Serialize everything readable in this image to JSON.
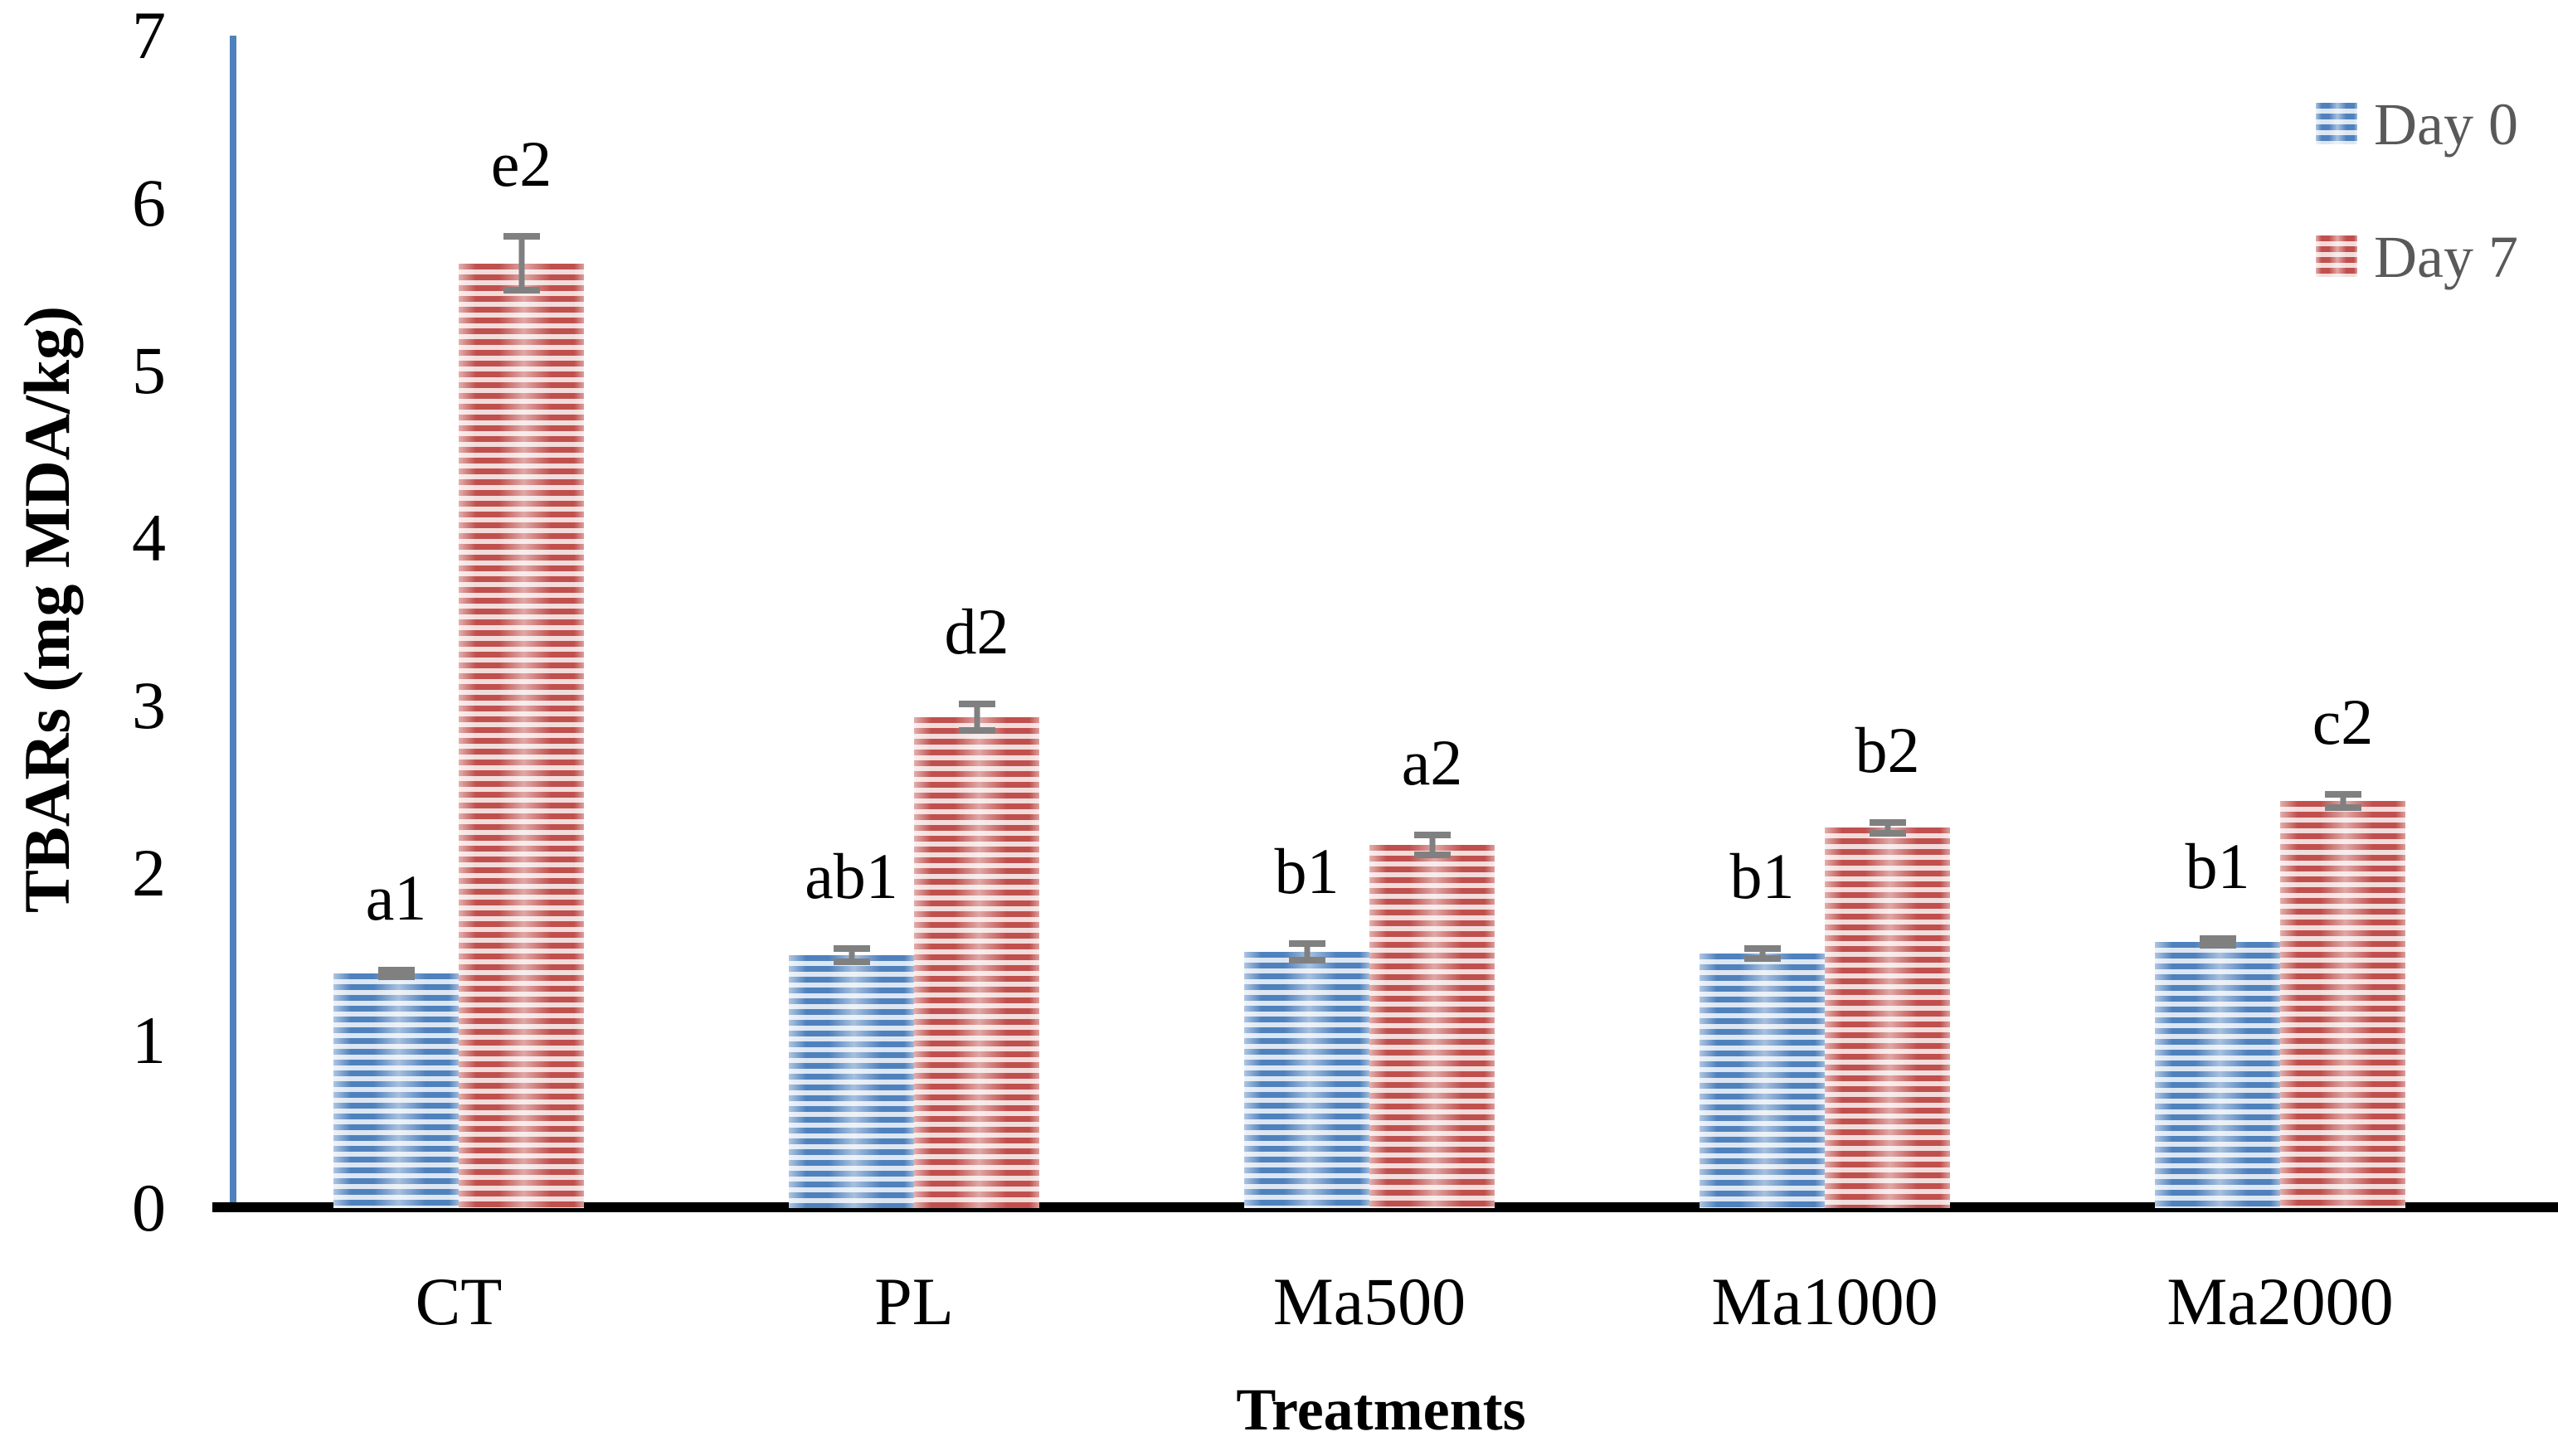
{
  "chart_data": {
    "type": "bar",
    "title": "",
    "xlabel": "Treatments",
    "ylabel": "TBARs (mg MDA/kg)",
    "categories": [
      "CT",
      "PL",
      "Ma500",
      "Ma1000",
      "Ma2000"
    ],
    "series": [
      {
        "name": "Day 0",
        "color": "#4f81bd",
        "stripe_light": "#dce6f2",
        "values": [
          1.4,
          1.51,
          1.53,
          1.52,
          1.59
        ],
        "errors": [
          0.04,
          0.06,
          0.07,
          0.05,
          0.04
        ],
        "point_labels": [
          "a1",
          "ab1",
          "b1",
          "b1",
          "b1"
        ]
      },
      {
        "name": "Day 7",
        "color": "#c0504d",
        "stripe_light": "#f2dcdb",
        "values": [
          5.64,
          2.93,
          2.17,
          2.27,
          2.43
        ],
        "errors": [
          0.18,
          0.1,
          0.08,
          0.05,
          0.06
        ],
        "point_labels": [
          "e2",
          "d2",
          "a2",
          "b2",
          "c2"
        ]
      }
    ],
    "ylim": [
      0,
      7
    ],
    "yticks": [
      0,
      1,
      2,
      3,
      4,
      5,
      6,
      7
    ],
    "grid": false,
    "legend_position": "top-right",
    "error_bar_color": "#808080",
    "y_axis_line_color": "#4f81bd",
    "x_axis_line_color": "#000000",
    "tick_label_color": "#000000",
    "legend_text_color": "#595959"
  }
}
